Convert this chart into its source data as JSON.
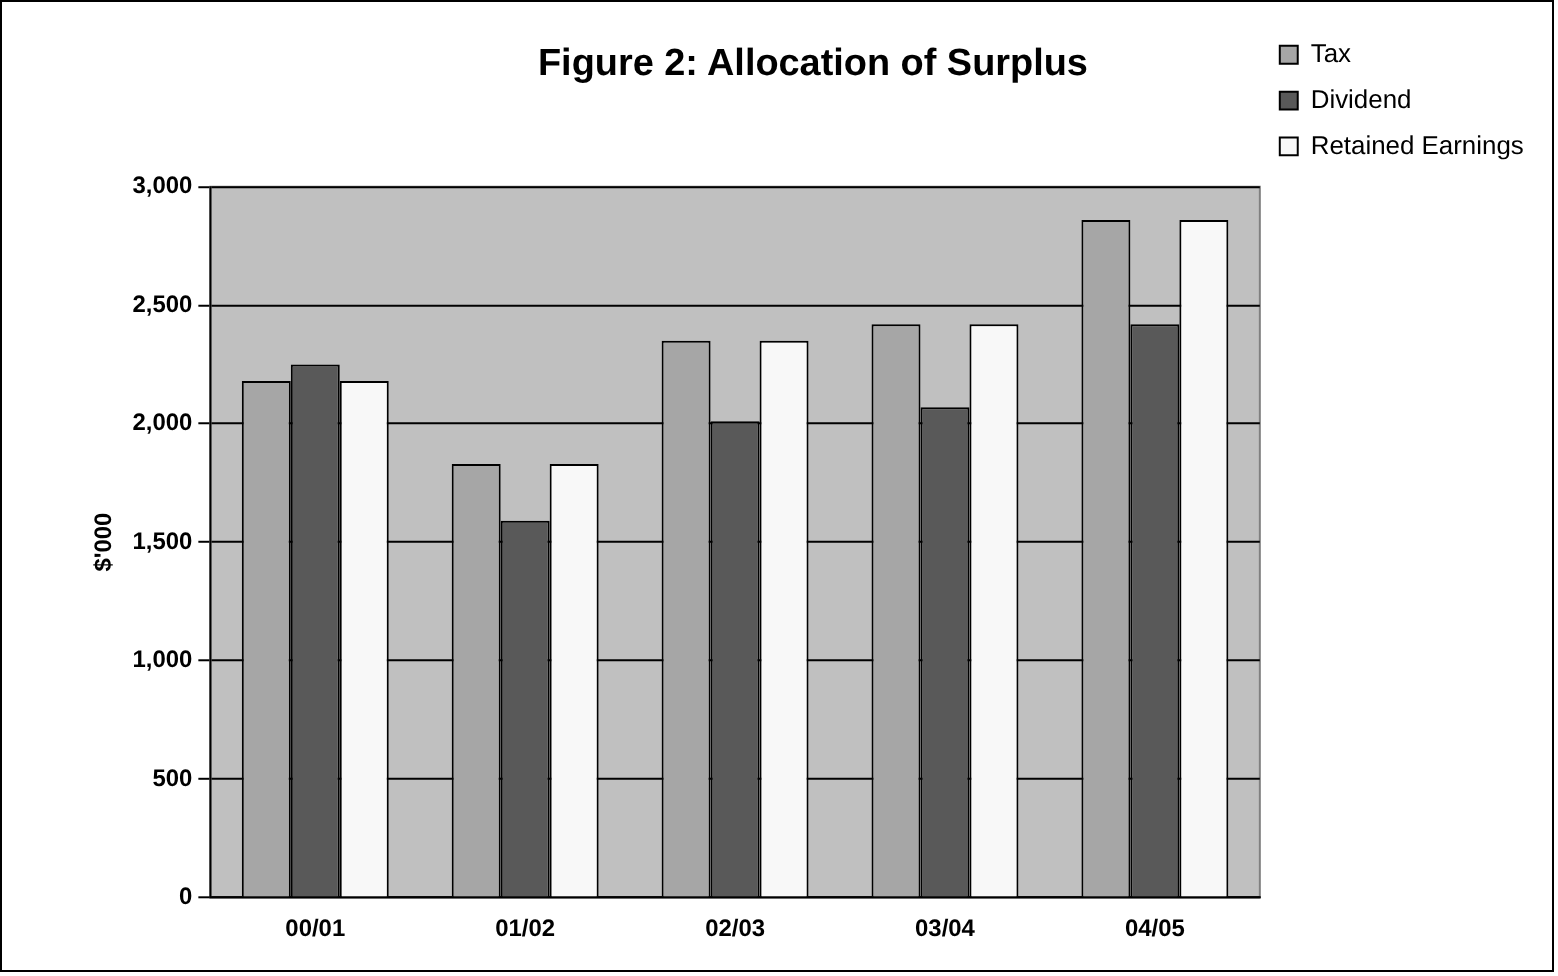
{
  "chart_data": {
    "type": "bar",
    "title": "Figure 2: Allocation of Surplus",
    "ylabel": "$'000",
    "categories": [
      "00/01",
      "01/02",
      "02/03",
      "03/04",
      "04/05"
    ],
    "series": [
      {
        "name": "Tax",
        "color": "#a6a6a6",
        "values": [
          2180,
          1830,
          2350,
          2420,
          2860
        ]
      },
      {
        "name": "Dividend",
        "color": "#595959",
        "values": [
          2250,
          1590,
          2010,
          2070,
          2420
        ]
      },
      {
        "name": "Retained Earnings",
        "color": "#f8f8f8",
        "values": [
          2180,
          1830,
          2350,
          2420,
          2860
        ]
      }
    ],
    "ylim": [
      0,
      3000
    ],
    "yticks": [
      0,
      500,
      {
        "value": 1000,
        "label": "1,000"
      },
      {
        "value": 1500,
        "label": "1,500"
      },
      {
        "value": 2000,
        "label": "2,000"
      },
      {
        "value": 2500,
        "label": "2,500"
      },
      {
        "value": 3000,
        "label": "3,000"
      }
    ],
    "grid": "y",
    "legend": "right"
  }
}
